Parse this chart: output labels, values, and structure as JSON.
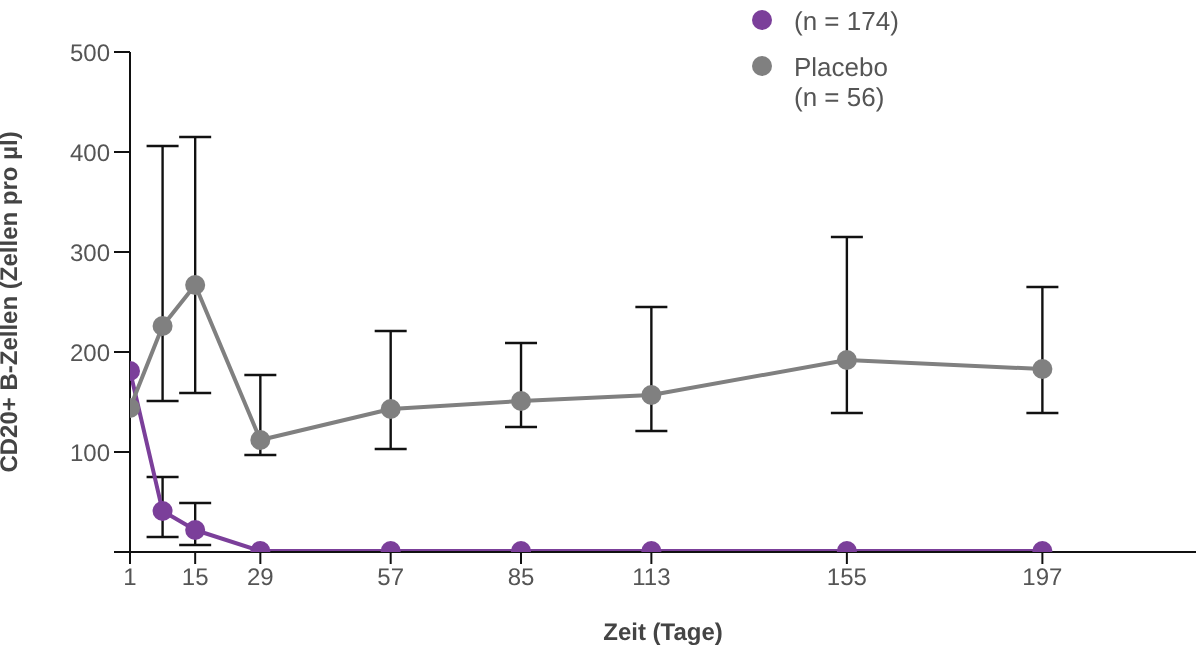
{
  "chart_data": {
    "type": "line",
    "xlabel": "Zeit (Tage)",
    "ylabel": "CD20+ B-Zellen (Zellen pro µl)",
    "xlim": [
      1,
      230
    ],
    "xticks": [
      1,
      15,
      29,
      57,
      85,
      113,
      155,
      197
    ],
    "ylim": [
      0,
      500
    ],
    "yticks": [
      {
        "value": 0,
        "label": null
      },
      100,
      200,
      300,
      400,
      500
    ],
    "x": [
      1,
      8,
      15,
      29,
      57,
      85,
      113,
      155,
      197
    ],
    "series": [
      {
        "color": "#7b3f9a",
        "values": [
          181,
          41,
          22,
          1,
          1,
          1,
          1,
          1,
          1
        ],
        "errors": [
          null,
          [
            15,
            75
          ],
          [
            7,
            49
          ],
          null,
          null,
          null,
          null,
          null,
          null
        ]
      },
      {
        "name": "Placebo (n = 56)",
        "color": "#808080",
        "values": [
          144,
          226,
          267,
          112,
          143,
          151,
          157,
          192,
          183
        ],
        "errors": [
          null,
          [
            151,
            406
          ],
          [
            159,
            415
          ],
          [
            97,
            177
          ],
          [
            103,
            221
          ],
          [
            125,
            209
          ],
          [
            121,
            245
          ],
          [
            139,
            315
          ],
          [
            139,
            265
          ]
        ]
      }
    ],
    "annotations": [
      "(n = 174)"
    ],
    "marker": "circle",
    "line_style": "solid",
    "legend": "top right"
  }
}
